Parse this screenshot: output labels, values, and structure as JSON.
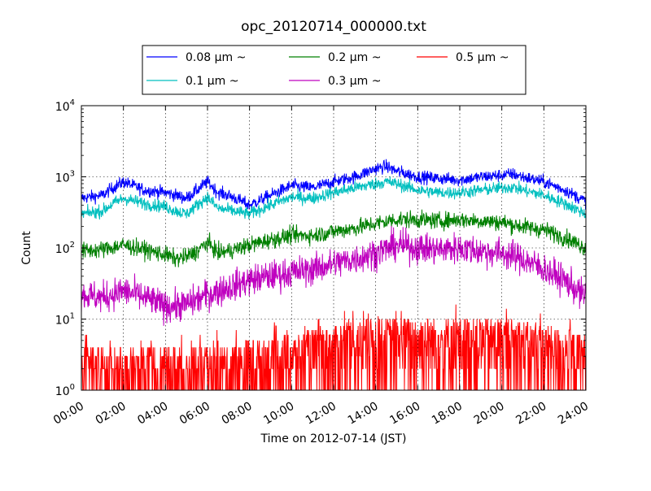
{
  "chart_data": {
    "type": "line",
    "title": "opc_20120714_000000.txt",
    "xlabel": "Time on 2012-07-14 (JST)",
    "ylabel": "Count",
    "yscale": "log",
    "ylim": [
      1,
      10000
    ],
    "xlim": [
      0,
      24
    ],
    "x_unit": "hours",
    "x_ticks": [
      "00:00",
      "02:00",
      "04:00",
      "06:00",
      "08:00",
      "10:00",
      "12:00",
      "14:00",
      "16:00",
      "18:00",
      "20:00",
      "22:00",
      "24:00"
    ],
    "x_tick_values": [
      0,
      2,
      4,
      6,
      8,
      10,
      12,
      14,
      16,
      18,
      20,
      22,
      24
    ],
    "y_ticks": [
      {
        "base": "10",
        "exp": "0",
        "value": 1
      },
      {
        "base": "10",
        "exp": "1",
        "value": 10
      },
      {
        "base": "10",
        "exp": "2",
        "value": 100
      },
      {
        "base": "10",
        "exp": "3",
        "value": 1000
      },
      {
        "base": "10",
        "exp": "4",
        "value": 10000
      }
    ],
    "grid": true,
    "legend_position": "top, above plot",
    "series": [
      {
        "name": "0.08 μm ~",
        "color": "#0000ff",
        "x": [
          0,
          1,
          1.5,
          2,
          3,
          4,
          4.5,
          5,
          5.5,
          6,
          6.5,
          7,
          8,
          9,
          10,
          11,
          12,
          13,
          14,
          14.5,
          15,
          16,
          17,
          18,
          19,
          20,
          20.5,
          21,
          22,
          23,
          24
        ],
        "y": [
          500,
          550,
          700,
          850,
          650,
          600,
          550,
          500,
          650,
          850,
          600,
          550,
          400,
          550,
          750,
          700,
          850,
          1000,
          1300,
          1400,
          1200,
          1000,
          950,
          900,
          1000,
          1050,
          1100,
          1000,
          850,
          650,
          450
        ]
      },
      {
        "name": "0.1 μm ~",
        "color": "#00bfbf",
        "x": [
          0,
          1,
          1.5,
          2,
          3,
          4,
          4.5,
          5,
          5.5,
          6,
          6.5,
          7,
          8,
          9,
          10,
          11,
          12,
          13,
          14,
          14.5,
          15,
          16,
          17,
          18,
          19,
          20,
          20.5,
          21,
          22,
          23,
          24
        ],
        "y": [
          300,
          330,
          420,
          500,
          420,
          380,
          330,
          300,
          400,
          520,
          360,
          340,
          300,
          400,
          520,
          500,
          600,
          700,
          800,
          850,
          800,
          650,
          600,
          600,
          650,
          700,
          720,
          650,
          550,
          420,
          300
        ]
      },
      {
        "name": "0.2 μm ~",
        "color": "#008000",
        "x": [
          0,
          1,
          2,
          3,
          4,
          4.5,
          5,
          5.5,
          6,
          6.5,
          7,
          8,
          9,
          10,
          11,
          12,
          13,
          14,
          15,
          16,
          17,
          18,
          19,
          20,
          21,
          22,
          23,
          24
        ],
        "y": [
          90,
          95,
          110,
          95,
          80,
          70,
          75,
          90,
          120,
          85,
          90,
          110,
          130,
          150,
          150,
          170,
          190,
          220,
          250,
          250,
          240,
          250,
          240,
          230,
          200,
          180,
          140,
          100
        ]
      },
      {
        "name": "0.3 μm ~",
        "color": "#bf00bf",
        "x": [
          0,
          1,
          2,
          3,
          4,
          5,
          6,
          7,
          8,
          9,
          10,
          11,
          12,
          13,
          14,
          15,
          16,
          17,
          18,
          19,
          20,
          21,
          22,
          23,
          24
        ],
        "y": [
          22,
          20,
          25,
          20,
          15,
          16,
          22,
          28,
          35,
          40,
          45,
          50,
          60,
          70,
          85,
          110,
          100,
          95,
          100,
          90,
          85,
          70,
          50,
          35,
          20
        ]
      },
      {
        "name": "0.5 μm ~",
        "color": "#ff0000",
        "x": [
          0,
          2,
          4,
          6,
          8,
          10,
          12,
          14,
          16,
          18,
          20,
          22,
          24
        ],
        "y": [
          2,
          2,
          2,
          2,
          2.5,
          3,
          4,
          5,
          5,
          5,
          5,
          4,
          3
        ]
      }
    ]
  }
}
